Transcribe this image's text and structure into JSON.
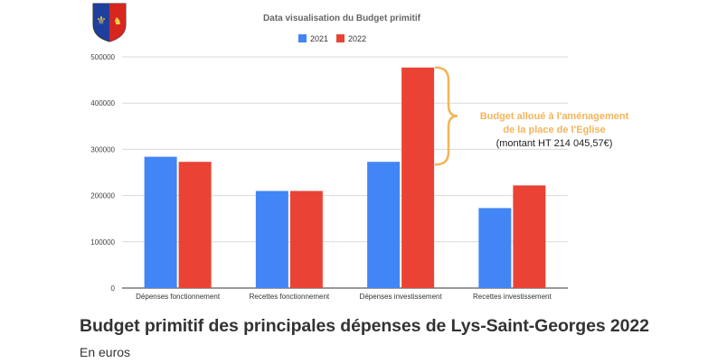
{
  "chart_data": {
    "type": "bar",
    "title": "Data visualisation du Budget primitif",
    "categories": [
      "Dépenses fonctionnement",
      "Recettes fonctionnement",
      "Dépenses investissement",
      "Recettes investissement"
    ],
    "series": [
      {
        "name": "2021",
        "color": "#4285f4",
        "values": [
          284000,
          210000,
          273000,
          173000
        ]
      },
      {
        "name": "2022",
        "color": "#ea4335",
        "values": [
          273000,
          210000,
          477000,
          222000
        ]
      }
    ],
    "ylim": [
      0,
      500000
    ],
    "yticks": [
      0,
      100000,
      200000,
      300000,
      400000,
      500000
    ],
    "ytick_labels": [
      "0",
      "100000",
      "200000",
      "300000",
      "400000",
      "500000"
    ],
    "xlabel": "",
    "ylabel": "",
    "grid": true,
    "legend": "top-center",
    "annotation": {
      "highlight_line1": "Budget alloué à l'aménagement",
      "highlight_line2": "de la place de l'Eglise",
      "note": "(montant HT 214 045,57€)",
      "range": [
        267000,
        477000
      ],
      "color": "#f4b45a"
    }
  },
  "caption": {
    "title": "Budget primitif des principales dépenses de Lys-Saint-Georges 2022",
    "subtitle": "En euros"
  },
  "crest": {
    "name": "coat-of-arms"
  }
}
